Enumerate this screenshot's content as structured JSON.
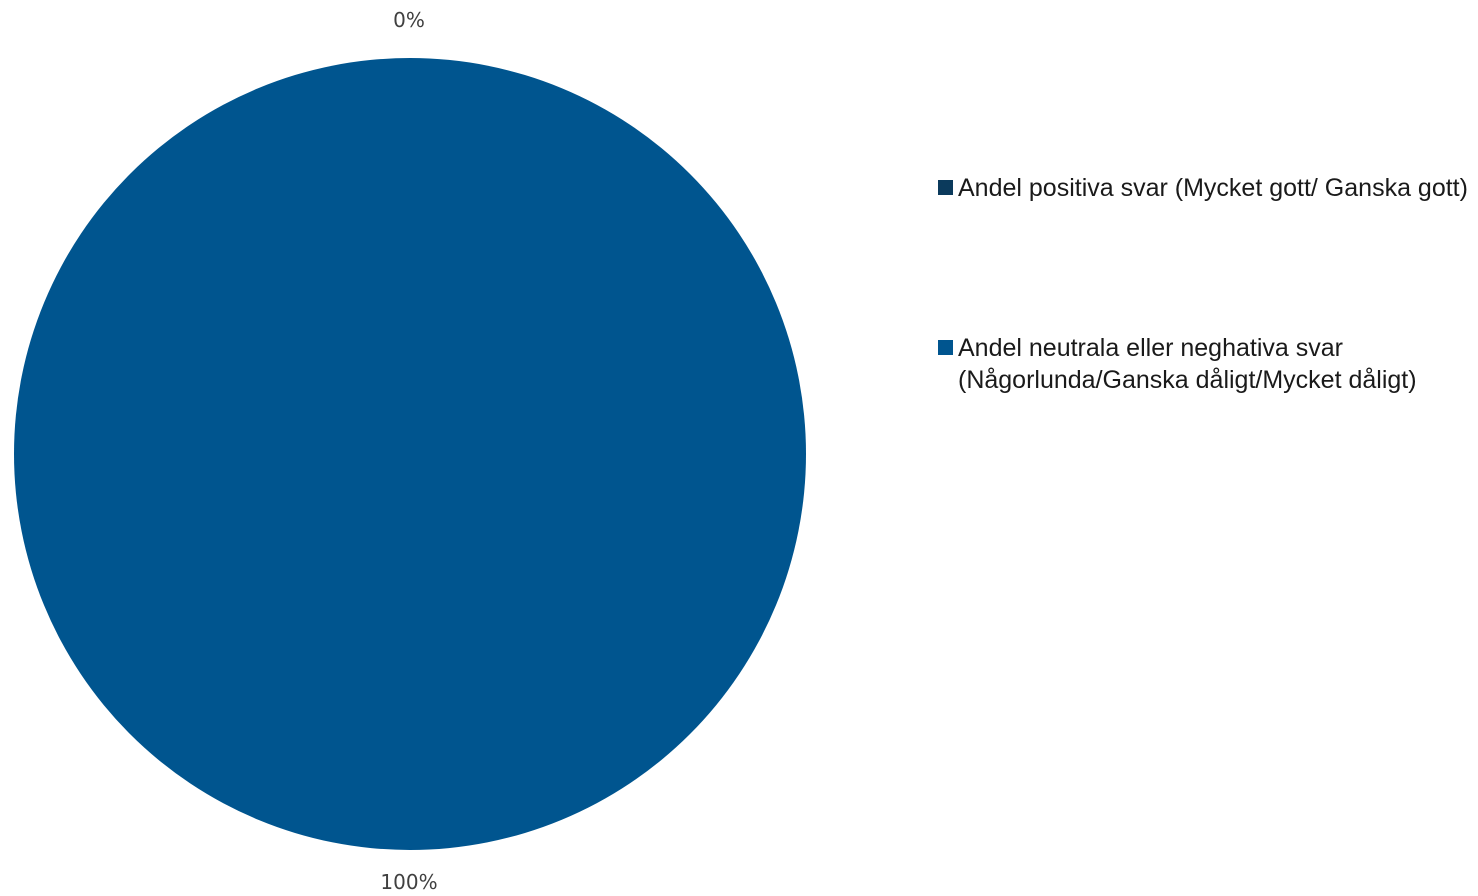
{
  "chart_data": {
    "type": "pie",
    "title": "",
    "slices": [
      {
        "name": "Andel positiva svar (Mycket gott/ Ganska gott)",
        "value": 0,
        "label": "0%",
        "color": "#0b3a5c"
      },
      {
        "name": "Andel neutrala eller neghativa svar (Någorlunda/Ganska dåligt/Mycket dåligt)",
        "value": 100,
        "label": "100%",
        "color": "#00558f"
      }
    ],
    "legend_position": "right"
  }
}
